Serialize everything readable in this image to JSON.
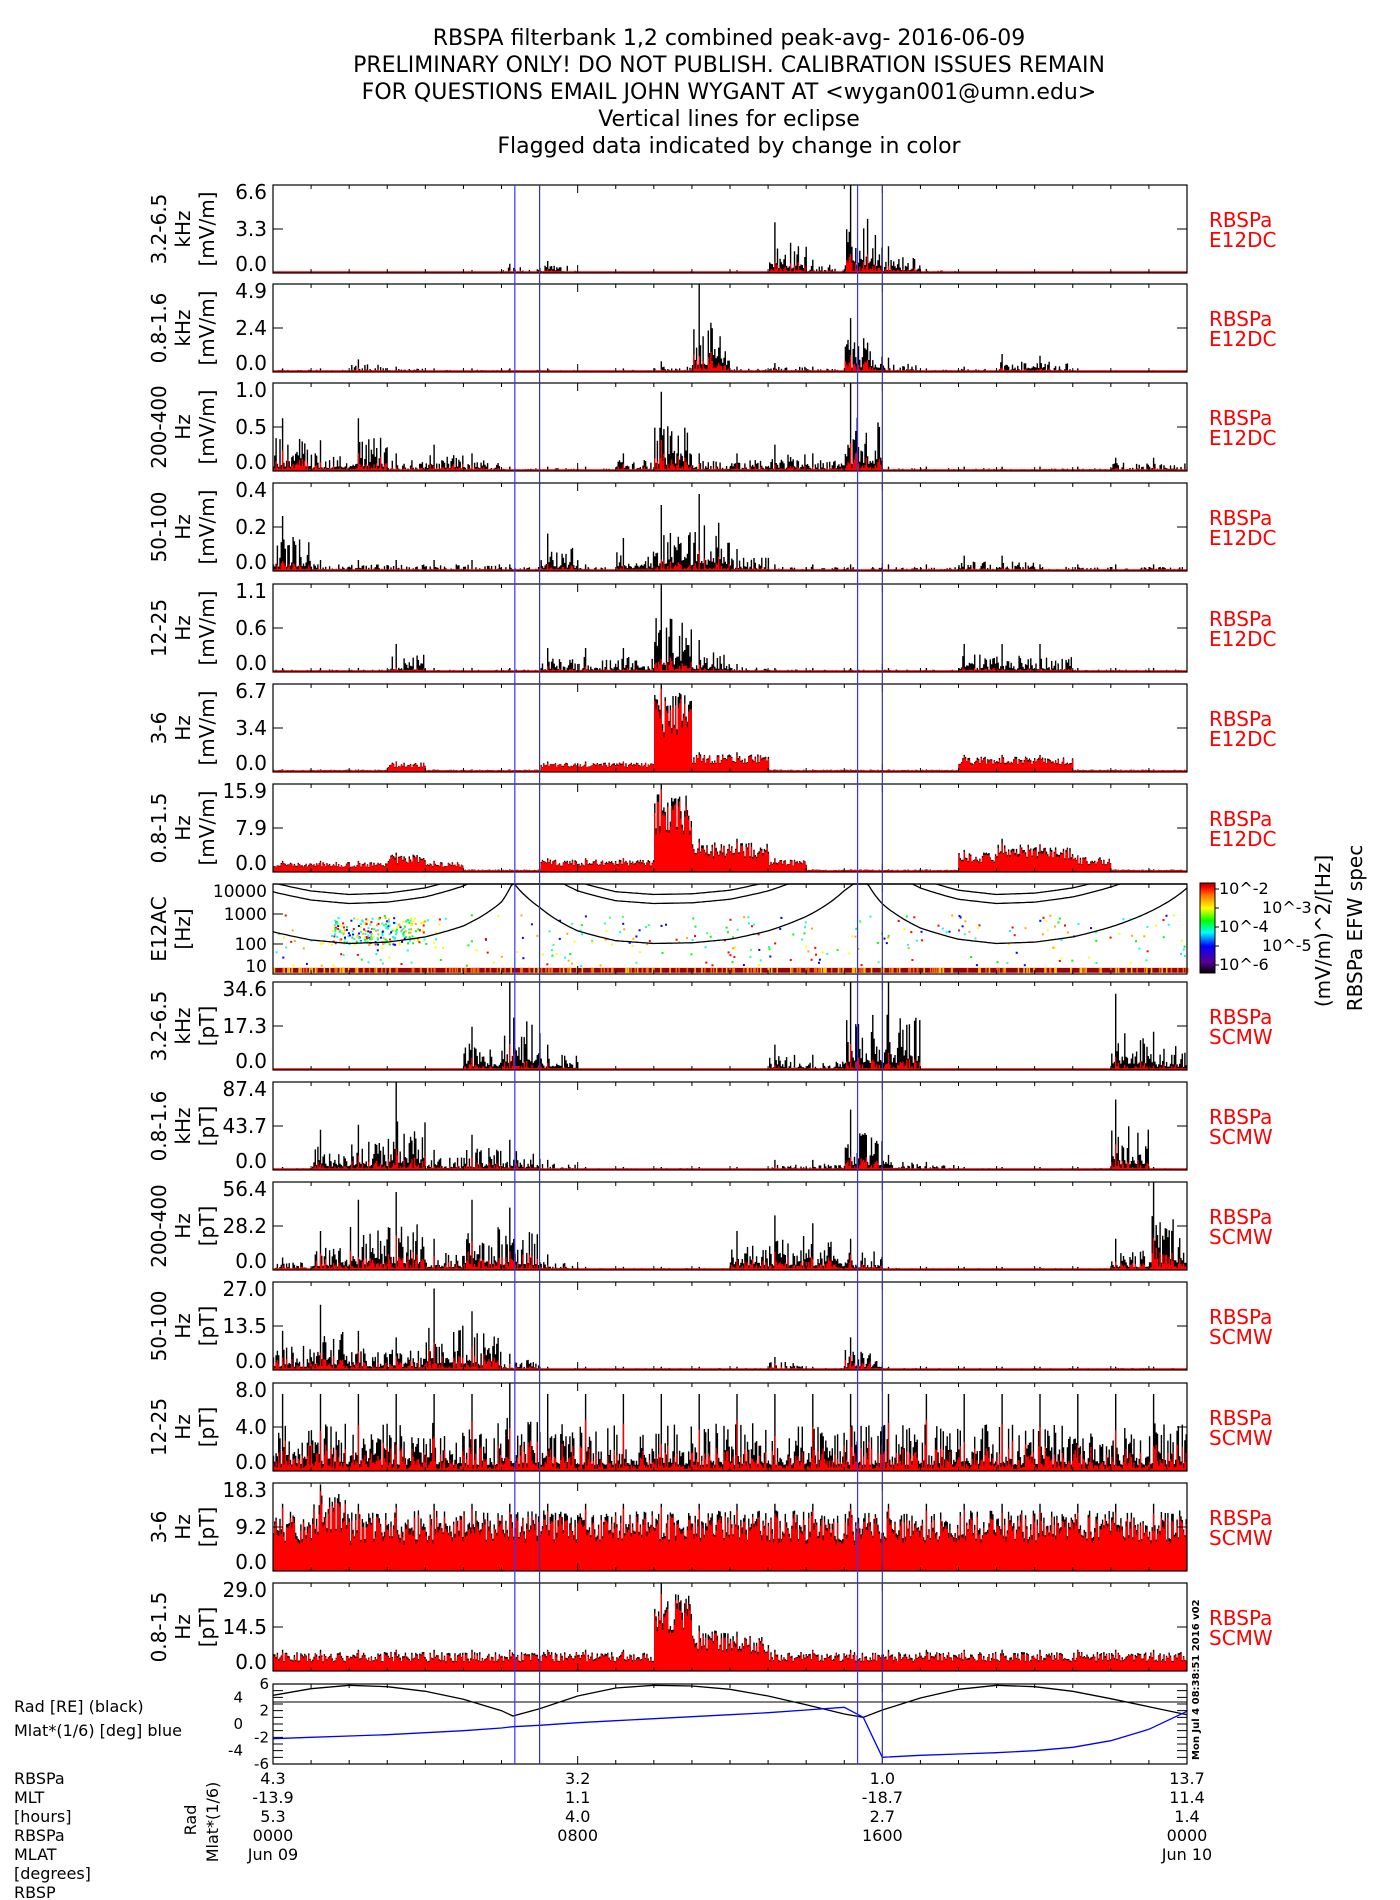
{
  "title_lines": [
    "RBSPA filterbank 1,2 combined peak-avg- 2016-06-09",
    "PRELIMINARY ONLY! DO NOT PUBLISH. CALIBRATION ISSUES REMAIN",
    "FOR QUESTIONS EMAIL JOHN WYGANT AT <wygan001@umn.edu>",
    "Vertical lines for eclipse",
    "Flagged data indicated by change in color"
  ],
  "colors": {
    "black_series": "#000000",
    "red_series": "#ff0000",
    "eclipse_lines": "#3333ff",
    "rad": "#000000",
    "mlat": "#0000ff"
  },
  "stamp": "Mon Jul  4 08:38:51 2016 v02",
  "chart_data": {
    "type": "line",
    "x_range_hours": [
      0,
      24
    ],
    "eclipse_lines_hours": [
      6.35,
      7.0,
      15.35,
      16.0
    ],
    "panels": [
      {
        "ylabel": [
          "3.2-6.5",
          "kHz",
          "[mV/m]"
        ],
        "ticks": [
          "0.0",
          "3.3",
          "6.6"
        ],
        "ylim": [
          0,
          6.6
        ],
        "side": [
          "RBSPa",
          "E12DC"
        ],
        "peak": [
          0.1,
          0.1,
          0.1,
          0.1,
          0.1,
          0.2,
          0.7,
          0.9,
          0.1,
          0.1,
          0.1,
          0.1,
          0.2,
          3.8,
          1.0,
          6.6,
          2.0,
          0.3,
          0.1,
          0.1,
          0.1,
          0.1,
          0.1,
          0.1
        ],
        "red_frac": 0.3
      },
      {
        "ylabel": [
          "0.8-1.6",
          "kHz",
          "[mV/m]"
        ],
        "ticks": [
          "0.0",
          "2.4",
          "4.9"
        ],
        "ylim": [
          0,
          4.9
        ],
        "side": [
          "RBSPa",
          "E12DC"
        ],
        "peak": [
          0.2,
          0.2,
          0.7,
          0.3,
          0.2,
          0.2,
          0.2,
          0.2,
          0.1,
          0.2,
          0.6,
          4.9,
          0.3,
          0.5,
          0.3,
          3.0,
          0.8,
          0.2,
          0.3,
          1.0,
          0.9,
          0.2,
          0.1,
          0.1
        ],
        "red_frac": 0.3
      },
      {
        "ylabel": [
          "200-400",
          "Hz",
          "[mV/m]"
        ],
        "ticks": [
          "0.0",
          "0.5",
          "1.0"
        ],
        "ylim": [
          0,
          1.0
        ],
        "side": [
          "RBSPa",
          "E12DC"
        ],
        "peak": [
          0.6,
          0.35,
          0.6,
          0.2,
          0.3,
          0.2,
          0.05,
          0.05,
          0.05,
          0.2,
          0.9,
          0.2,
          0.2,
          0.3,
          0.2,
          1.0,
          0.05,
          0.05,
          0.05,
          0.05,
          0.05,
          0.05,
          0.15,
          0.15
        ],
        "red_frac": 0.3
      },
      {
        "ylabel": [
          "50-100",
          "Hz",
          "[mV/m]"
        ],
        "ticks": [
          "0.0",
          "0.2",
          "0.4"
        ],
        "ylim": [
          0,
          0.4
        ],
        "side": [
          "RBSPa",
          "E12DC"
        ],
        "peak": [
          0.25,
          0.05,
          0.05,
          0.05,
          0.05,
          0.05,
          0.03,
          0.17,
          0.03,
          0.15,
          0.3,
          0.35,
          0.1,
          0.03,
          0.03,
          0.03,
          0.03,
          0.03,
          0.07,
          0.07,
          0.03,
          0.03,
          0.03,
          0.03
        ],
        "red_frac": 0.2
      },
      {
        "ylabel": [
          "12-25",
          "Hz",
          "[mV/m]"
        ],
        "ticks": [
          "0.0",
          "0.6",
          "1.1"
        ],
        "ylim": [
          0,
          1.1
        ],
        "side": [
          "RBSPa",
          "E12DC"
        ],
        "peak": [
          0.05,
          0.05,
          0.05,
          0.35,
          0.05,
          0.05,
          0.05,
          0.3,
          0.3,
          0.3,
          1.1,
          0.4,
          0.1,
          0.05,
          0.05,
          0.05,
          0.05,
          0.05,
          0.35,
          0.35,
          0.35,
          0.05,
          0.05,
          0.05
        ],
        "red_frac": 0.2
      },
      {
        "ylabel": [
          "3-6",
          "Hz",
          "[mV/m]"
        ],
        "ticks": [
          "0.0",
          "3.4",
          "6.7"
        ],
        "ylim": [
          0,
          6.7
        ],
        "side": [
          "RBSPa",
          "E12DC"
        ],
        "peak": [
          0.2,
          0.2,
          0.2,
          0.8,
          0.2,
          0.2,
          0.2,
          0.8,
          0.8,
          0.8,
          6.7,
          1.5,
          1.5,
          0.2,
          0.2,
          0.2,
          0.2,
          0.2,
          1.3,
          1.3,
          1.3,
          0.2,
          0.2,
          0.2
        ],
        "red_frac": 0.8
      },
      {
        "ylabel": [
          "0.8-1.5",
          "Hz",
          "[mV/m]"
        ],
        "ticks": [
          "0.0",
          "7.9",
          "15.9"
        ],
        "ylim": [
          0,
          15.9
        ],
        "side": [
          "RBSPa",
          "E12DC"
        ],
        "peak": [
          2.0,
          2.0,
          2.0,
          3.5,
          2.0,
          0.5,
          0.5,
          2.5,
          2.5,
          2.5,
          15.9,
          6.0,
          6.0,
          2.5,
          0.5,
          0.5,
          0.5,
          0.5,
          4.0,
          6.0,
          5.0,
          3.0,
          0.5,
          0.5
        ],
        "red_frac": 0.9
      },
      {
        "ylabel": [
          "3.2-6.5",
          "kHz",
          "[pT]"
        ],
        "ticks": [
          "0.0",
          "17.3",
          "34.6"
        ],
        "ylim": [
          0,
          34.6
        ],
        "side": [
          "RBSPa",
          "SCMW"
        ],
        "peak": [
          0.5,
          0.5,
          0.5,
          0.5,
          0.5,
          17,
          34.6,
          10,
          0.5,
          0.5,
          0.5,
          0.5,
          0.5,
          10,
          6,
          34.6,
          34.6,
          0.5,
          0.5,
          0.5,
          0.5,
          0.5,
          30,
          15
        ],
        "red_frac": 0.2
      },
      {
        "ylabel": [
          "0.8-1.6",
          "kHz",
          "[pT]"
        ],
        "ticks": [
          "0.0",
          "43.7",
          "87.4"
        ],
        "ylim": [
          0,
          87.4
        ],
        "side": [
          "RBSPa",
          "SCMW"
        ],
        "peak": [
          3,
          40,
          45,
          87.4,
          20,
          35,
          30,
          10,
          3,
          3,
          3,
          3,
          3,
          10,
          10,
          60,
          15,
          8,
          3,
          3,
          3,
          3,
          70,
          3
        ],
        "red_frac": 0.25
      },
      {
        "ylabel": [
          "200-400",
          "Hz",
          "[pT]"
        ],
        "ticks": [
          "0.0",
          "28.2",
          "56.4"
        ],
        "ylim": [
          0,
          56.4
        ],
        "side": [
          "RBSPa",
          "SCMW"
        ],
        "peak": [
          8,
          25,
          45,
          50,
          20,
          45,
          40,
          10,
          2,
          2,
          2,
          2,
          25,
          35,
          30,
          20,
          2,
          2,
          2,
          2,
          2,
          2,
          20,
          56.4
        ],
        "red_frac": 0.35
      },
      {
        "ylabel": [
          "50-100",
          "Hz",
          "[pT]"
        ],
        "ticks": [
          "0.0",
          "13.5",
          "27.0"
        ],
        "ylim": [
          0,
          27.0
        ],
        "side": [
          "RBSPa",
          "SCMW"
        ],
        "peak": [
          12,
          20,
          12,
          10,
          25,
          18,
          5,
          1,
          1,
          1,
          1,
          1,
          1,
          4,
          1,
          10,
          1,
          1,
          1,
          1,
          1,
          1,
          1,
          1
        ],
        "red_frac": 0.35
      },
      {
        "ylabel": [
          "12-25",
          "Hz",
          "[pT]"
        ],
        "ticks": [
          "0.0",
          "4.0",
          "8.0"
        ],
        "ylim": [
          0,
          8.0
        ],
        "side": [
          "RBSPa",
          "SCMW"
        ],
        "peak": [
          7,
          7,
          7,
          7,
          7,
          7,
          8,
          7,
          7,
          7,
          7,
          7,
          7,
          7,
          7,
          7,
          7,
          7,
          7,
          7,
          7,
          7,
          7,
          7
        ],
        "red_frac": 0.45
      },
      {
        "ylabel": [
          "3-6",
          "Hz",
          "[pT]"
        ],
        "ticks": [
          "0.0",
          "9.2",
          "18.3"
        ],
        "ylim": [
          0,
          18.3
        ],
        "side": [
          "RBSPa",
          "SCMW"
        ],
        "peak": [
          14,
          18,
          14,
          14,
          14,
          14,
          14,
          14,
          14,
          14,
          14,
          14,
          14,
          14,
          14,
          14,
          14,
          14,
          14,
          14,
          14,
          14,
          14,
          14
        ],
        "red_frac": 0.8
      },
      {
        "ylabel": [
          "0.8-1.5",
          "Hz",
          "[pT]"
        ],
        "ticks": [
          "0.0",
          "14.5",
          "29.0"
        ],
        "ylim": [
          0,
          29.0
        ],
        "side": [
          "RBSPa",
          "SCMW"
        ],
        "peak": [
          7,
          7,
          7,
          7,
          7,
          7,
          7,
          7,
          7,
          7,
          29,
          15,
          13,
          7,
          7,
          7,
          7,
          7,
          7,
          7,
          7,
          7,
          7,
          7
        ],
        "red_frac": 0.95
      }
    ],
    "spectrogram": {
      "type": "heatmap",
      "ylabel": [
        "E12AC",
        "[Hz]"
      ],
      "ticks": [
        "10",
        "100",
        "1000",
        "10000"
      ],
      "ylim": [
        10,
        10000
      ],
      "log": true,
      "colorbar_ticks": [
        "10^-2",
        "10^-3",
        "10^-4",
        "10^-5",
        "10^-6"
      ],
      "colorbar_label": "(mV/m)^2/[Hz]",
      "colorbar_title": "RBSPa EFW spec"
    },
    "ephemeris": {
      "ylabel_rad": "Rad [RE] (black)",
      "ylabel_mlat": "Mlat*(1/6) [deg] blue",
      "ticks": [
        "-6",
        "-4",
        "-2",
        "0",
        "2",
        "4",
        "6"
      ],
      "ylim": [
        -6,
        6
      ],
      "hours": [
        0,
        1,
        2,
        3,
        4,
        5,
        6,
        6.3,
        7,
        8,
        9,
        10,
        11,
        12,
        13,
        14,
        15,
        15.5,
        16,
        17,
        18,
        19,
        20,
        21,
        22,
        23,
        24
      ],
      "rad": [
        4.3,
        5.3,
        5.8,
        5.6,
        4.9,
        3.7,
        2.0,
        1.2,
        2.3,
        4.2,
        5.4,
        5.8,
        5.7,
        5.2,
        4.2,
        2.9,
        1.5,
        1.0,
        2.1,
        3.9,
        5.2,
        5.8,
        5.6,
        4.9,
        3.8,
        2.6,
        1.4
      ],
      "mlat_scaled": [
        -2.2,
        -2.0,
        -1.8,
        -1.6,
        -1.3,
        -1.0,
        -0.6,
        -0.4,
        -0.2,
        0.2,
        0.5,
        0.8,
        1.1,
        1.4,
        1.7,
        2.1,
        2.5,
        1.0,
        -5.0,
        -4.7,
        -4.5,
        -4.3,
        -4.0,
        -3.5,
        -2.5,
        -0.8,
        1.9
      ]
    },
    "x_axis": {
      "row_labels": [
        "RBSPa",
        "MLT",
        "[hours]",
        "RBSPa",
        "MLAT",
        "[degrees]",
        "RBSP"
      ],
      "axis_titles": [
        "Rad",
        "Mlat*(1/6)"
      ],
      "columns": [
        {
          "v1": "4.3",
          "v2": "-13.9",
          "v3": "5.3",
          "time": "0000",
          "date": "Jun 09"
        },
        {
          "v1": "3.2",
          "v2": "1.1",
          "v3": "4.0",
          "time": "0800",
          "date": ""
        },
        {
          "v1": "1.0",
          "v2": "-18.7",
          "v3": "2.7",
          "time": "1600",
          "date": ""
        },
        {
          "v1": "13.7",
          "v2": "11.4",
          "v3": "1.4",
          "time": "0000",
          "date": "Jun 10"
        }
      ]
    }
  }
}
